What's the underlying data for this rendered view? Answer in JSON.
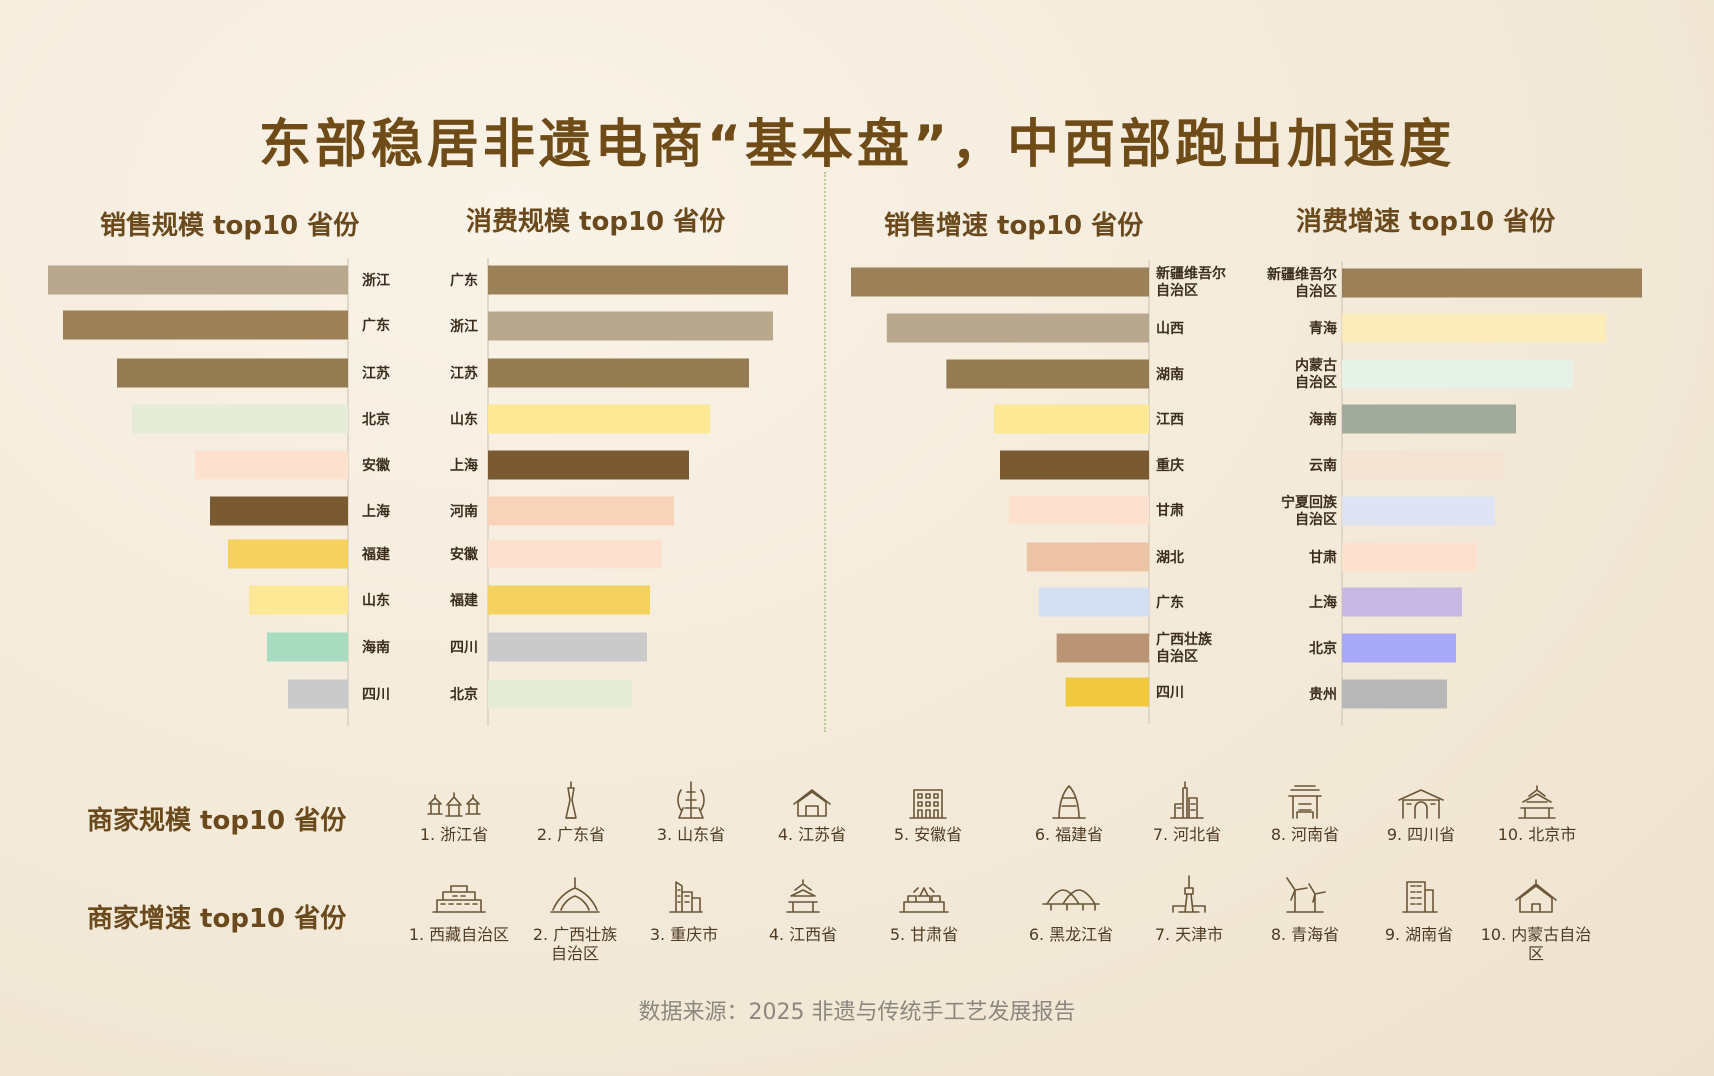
{
  "title": "东部稳居非遗电商“基本盘”，中西部跑出加速度",
  "source": "数据来源：2025 非遗与传统手工艺发展报告",
  "chart_data": [
    {
      "type": "bar",
      "title": "销售规模 top10 省份",
      "orientation": "horizontal-left",
      "categories": [
        "浙江",
        "广东",
        "江苏",
        "北京",
        "安徽",
        "上海",
        "福建",
        "山东",
        "海南",
        "四川"
      ],
      "values": [
        100,
        95,
        77,
        72,
        51,
        46,
        40,
        33,
        27,
        20
      ],
      "colors": [
        "#b8a88e",
        "#9b8058",
        "#957b52",
        "#e6ecd8",
        "#fde1cf",
        "#7a5a30",
        "#f5d160",
        "#fde896",
        "#a8dcc0",
        "#cacaca"
      ]
    },
    {
      "type": "bar",
      "title": "消费规模 top10 省份",
      "orientation": "horizontal-right",
      "categories": [
        "广东",
        "浙江",
        "江苏",
        "山东",
        "上海",
        "河南",
        "安徽",
        "福建",
        "四川",
        "北京"
      ],
      "values": [
        100,
        95,
        87,
        74,
        67,
        62,
        58,
        54,
        53,
        48
      ],
      "colors": [
        "#9b8058",
        "#b8a88e",
        "#957b52",
        "#fde896",
        "#7a5a30",
        "#f6d3b9",
        "#fde1cf",
        "#f5d160",
        "#cacaca",
        "#e6ecd8"
      ]
    },
    {
      "type": "bar",
      "title": "销售增速 top10 省份",
      "orientation": "horizontal-left",
      "categories": [
        "新疆维吾尔\n自治区",
        "山西",
        "湖南",
        "江西",
        "重庆",
        "甘肃",
        "湖北",
        "广东",
        "广西壮族\n自治区",
        "四川"
      ],
      "values": [
        100,
        88,
        68,
        52,
        50,
        47,
        41,
        37,
        31,
        28
      ],
      "colors": [
        "#9b8058",
        "#b8a88e",
        "#957b52",
        "#fde896",
        "#7a5a30",
        "#fde1cf",
        "#edc3a6",
        "#d2e0f2",
        "#b99575",
        "#f1c93e"
      ]
    },
    {
      "type": "bar",
      "title": "消费增速 top10 省份",
      "orientation": "horizontal-right",
      "categories": [
        "新疆维吾尔\n自治区",
        "青海",
        "内蒙古\n自治区",
        "海南",
        "云南",
        "宁夏回族\n自治区",
        "甘肃",
        "上海",
        "北京",
        "贵州"
      ],
      "values": [
        100,
        88,
        77,
        58,
        54,
        51,
        45,
        40,
        38,
        35
      ],
      "colors": [
        "#9b8058",
        "#fcecba",
        "#e6f2e6",
        "#a2aa9c",
        "#f5e3d4",
        "#dfe4f4",
        "#fde1cf",
        "#c8b8e4",
        "#a8a8f8",
        "#b8b8b8"
      ]
    }
  ],
  "merchant_scale": {
    "label": "商家规模 top10 省份",
    "items": [
      {
        "label": "1. 浙江省",
        "icon": "pavilions-icon"
      },
      {
        "label": "2. 广东省",
        "icon": "canton-tower-icon"
      },
      {
        "label": "3. 山东省",
        "icon": "tower-icon"
      },
      {
        "label": "4. 江苏省",
        "icon": "house-icon"
      },
      {
        "label": "5. 安徽省",
        "icon": "building-icon"
      },
      {
        "label": "6. 福建省",
        "icon": "skyscraper-icon"
      },
      {
        "label": "7. 河北省",
        "icon": "city-tower-icon"
      },
      {
        "label": "8. 河南省",
        "icon": "pagoda-icon"
      },
      {
        "label": "9. 四川省",
        "icon": "gate-icon"
      },
      {
        "label": "10. 北京市",
        "icon": "temple-of-heaven-icon"
      }
    ]
  },
  "merchant_growth": {
    "label": "商家增速 top10 省份",
    "items": [
      {
        "label": "1. 西藏自治区",
        "icon": "potala-palace-icon"
      },
      {
        "label": "2. 广西壮族\n自治区",
        "icon": "stadium-icon"
      },
      {
        "label": "3. 重庆市",
        "icon": "city-skyline-icon"
      },
      {
        "label": "4. 江西省",
        "icon": "pavilion-icon"
      },
      {
        "label": "5. 甘肃省",
        "icon": "fortress-icon"
      },
      {
        "label": "6. 黑龙江省",
        "icon": "bridge-icon"
      },
      {
        "label": "7. 天津市",
        "icon": "tv-tower-icon"
      },
      {
        "label": "8. 青海省",
        "icon": "wind-turbine-icon"
      },
      {
        "label": "9. 湖南省",
        "icon": "office-building-icon"
      },
      {
        "label": "10. 内蒙古自治区",
        "icon": "yurt-icon"
      }
    ]
  }
}
